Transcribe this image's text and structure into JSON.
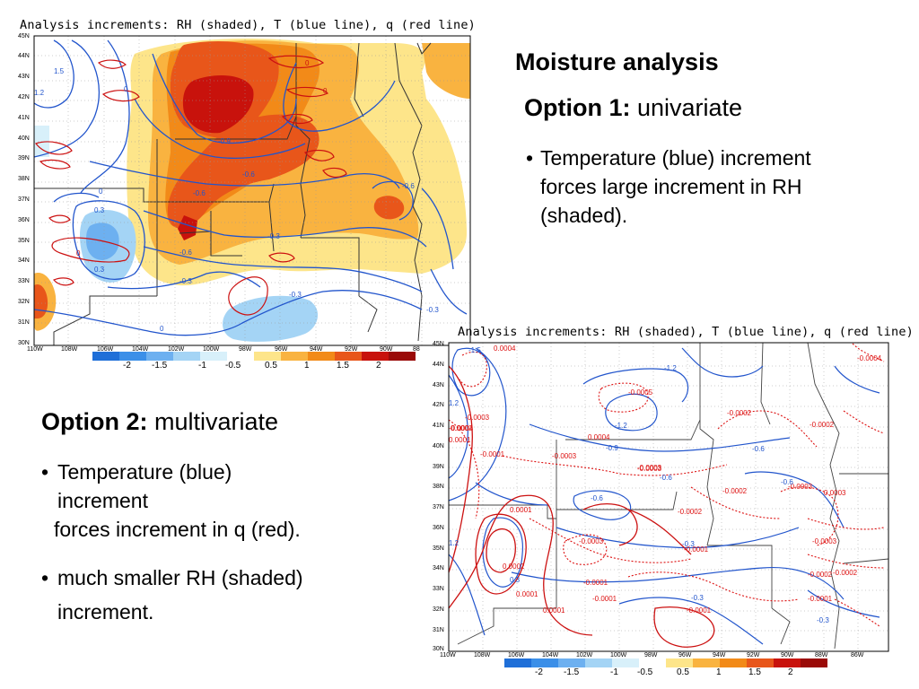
{
  "slide": {
    "title": "Moisture analysis",
    "option1": {
      "label": "Option 1:",
      "type": "univariate",
      "bullet": {
        "bullet": "•",
        "text": "Temperature (blue) increment forces large increment in RH (shaded)."
      }
    },
    "option2": {
      "label": "Option 2:",
      "type": "multivariate",
      "bullets": [
        {
          "bullet": "•",
          "line1": "Temperature (blue)",
          "line2": "increment",
          "line3": "forces increment in q (red)."
        },
        {
          "bullet": "•",
          "line1": "much smaller RH (shaded)",
          "line2": "increment."
        }
      ]
    }
  },
  "map1": {
    "title": "Analysis increments:  RH (shaded), T (blue line), q (red line)",
    "lat_labels": [
      "45N",
      "44N",
      "43N",
      "42N",
      "41N",
      "40N",
      "39N",
      "38N",
      "37N",
      "36N",
      "35N",
      "34N",
      "33N",
      "32N",
      "31N",
      "30N"
    ],
    "lon_labels": [
      "110W",
      "108W",
      "106W",
      "104W",
      "102W",
      "100W",
      "98W",
      "96W",
      "94W",
      "92W",
      "90W",
      "88"
    ],
    "contour_labels": [
      "1.5",
      "1.2",
      "-0.9",
      "-0.6",
      "-0.6",
      "-0.3",
      "-0.6",
      "-0.3",
      "-0.6",
      "0.3",
      "0.3",
      "0",
      "0",
      "-0.3",
      "-0.3",
      "0",
      "0",
      "0",
      "0"
    ],
    "colorbar": {
      "labels": [
        "-2",
        "-1.5",
        "-1",
        "-0.5",
        "0.5",
        "1",
        "1.5",
        "2"
      ],
      "colors": [
        "#1f6fd8",
        "#3b8fe8",
        "#6db0f0",
        "#a4d4f5",
        "#d8f0fa",
        "#ffffff",
        "#fde58a",
        "#f9b340",
        "#f28a18",
        "#e8561a",
        "#c8120c",
        "#9a0a08"
      ]
    }
  },
  "map2": {
    "title": "Analysis increments:  RH (shaded), T (blue line), q (red line)",
    "lat_labels": [
      "45N",
      "44N",
      "43N",
      "42N",
      "41N",
      "40N",
      "39N",
      "38N",
      "37N",
      "36N",
      "35N",
      "34N",
      "33N",
      "32N",
      "31N",
      "30N"
    ],
    "lon_labels": [
      "110W",
      "108W",
      "106W",
      "104W",
      "102W",
      "100W",
      "98W",
      "96W",
      "94W",
      "92W",
      "90W",
      "88W",
      "86W"
    ],
    "contour_labels": [
      "-1.5",
      "0.0004",
      "1.2",
      "-1.2",
      "-0.0005",
      "-1.2",
      "-0.0004",
      "-0.0002",
      "-0.0002",
      "-0.0004",
      "-0.0003",
      "0.0002",
      "0.0001",
      "-0.0001",
      "-0.0003",
      "-0.0003",
      "-0.9",
      "-0.6",
      "0.0004",
      "-0.6",
      "-0.0003",
      "-0.0002",
      "-0.6",
      "-0.0003",
      "0.0001",
      "-0.6",
      "-0.0002",
      "-0.0003",
      "-0.3",
      "-0.0001",
      "-0.0003",
      "-0.0002",
      "0.0002",
      "-0.0001",
      "-0.0002",
      "0.0001",
      "-0.0001",
      "-0.3",
      "-0.0001",
      "-0.3",
      "1.2",
      "-0.0001",
      "0.3",
      "0.0001",
      "0.0003"
    ],
    "colorbar": {
      "labels": [
        "-2",
        "-1.5",
        "-1",
        "-0.5",
        "0.5",
        "1",
        "1.5",
        "2"
      ],
      "colors": [
        "#1f6fd8",
        "#3b8fe8",
        "#6db0f0",
        "#a4d4f5",
        "#d8f0fa",
        "#ffffff",
        "#fde58a",
        "#f9b340",
        "#f28a18",
        "#e8561a",
        "#c8120c",
        "#9a0a08"
      ]
    }
  }
}
